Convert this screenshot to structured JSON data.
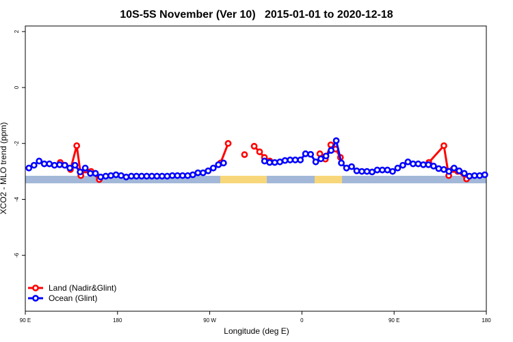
{
  "chart_data": {
    "type": "line",
    "title": "10S-5S November (Ver 10)   2015-01-01 to 2020-12-18",
    "x_label": "Longitude (deg E)",
    "y_label": "XCO2 - MLO trend (ppm)",
    "xlim": [
      90,
      540
    ],
    "ylim": [
      -8,
      2.2
    ],
    "xticks": [
      {
        "value": 90,
        "label": "90 E"
      },
      180,
      {
        "value": 270,
        "label": "90 W"
      },
      {
        "value": 360,
        "label": "0"
      },
      {
        "value": 450,
        "label": "90 E"
      },
      {
        "value": 540,
        "label": "180"
      }
    ],
    "yticks": [
      -6,
      -4,
      -2,
      0,
      2
    ],
    "legend": "bottom-left",
    "series": [
      {
        "name": "Land (Nadir&Glint)",
        "color": "#ff0000",
        "x": [
          124.1,
          128.8,
          134.1,
          140.2,
          144.2,
          148.8,
          154.2,
          162.2,
          null,
          280.6,
          288,
          null,
          304,
          null,
          313.4,
          318.7,
          323.4,
          328.7,
          null,
          377.5,
          382.9,
          388.2,
          392.9,
          397.6,
          null,
          483.9,
          498.6,
          503.3,
          507.3,
          512,
          520.7
        ],
        "values": [
          -2.68,
          -2.78,
          -2.93,
          -2.08,
          -3.15,
          -2.95,
          -3.0,
          -3.29,
          null,
          -2.7,
          -2.0,
          null,
          -2.4,
          null,
          -2.1,
          -2.3,
          -2.5,
          -2.63,
          null,
          -2.37,
          -2.56,
          -2.05,
          -2.2,
          -2.5,
          null,
          -2.68,
          -2.08,
          -3.15,
          -2.93,
          -3.0,
          -3.27
        ]
      },
      {
        "name": "Ocean (Glint)",
        "color": "#0000ff",
        "x": [
          93.5,
          98.5,
          103.5,
          108.5,
          113.5,
          118.5,
          123.5,
          128.5,
          133.5,
          138.5,
          143.5,
          148.5,
          153.5,
          158.5,
          163.5,
          168.5,
          173.5,
          178.5,
          183.5,
          188.5,
          193.5,
          198.5,
          203.5,
          208.5,
          213.5,
          218.5,
          223.5,
          228.5,
          233.5,
          238.5,
          243.5,
          248.5,
          253.5,
          258.5,
          263.5,
          268.5,
          273.5,
          278.5,
          283.5,
          288.5,
          293.5,
          298.5,
          303.5,
          308.5,
          313.5,
          318.5,
          323.5,
          328.5,
          333.5,
          338.5,
          343.5,
          348.5,
          353.5,
          358.5,
          363.5,
          368.5,
          373.5,
          378.5,
          383.5,
          388.5,
          393.5,
          398.5,
          403.5,
          408.5,
          413.5,
          418.5,
          423.5,
          428.5,
          433.5,
          438.5,
          443.5,
          448.5,
          453.5,
          458.5,
          463.5,
          468.5,
          473.5,
          478.5,
          483.5,
          488.5,
          493.5,
          498.5,
          503.5,
          508.5,
          513.5,
          518.5,
          523.5,
          528.5,
          533.5,
          538.5
        ],
        "values": [
          -2.88,
          -2.78,
          -2.63,
          -2.73,
          -2.73,
          -2.78,
          -2.76,
          -2.78,
          -2.88,
          -2.78,
          -3.02,
          -2.88,
          -3.07,
          -3.07,
          -3.2,
          -3.17,
          -3.15,
          -3.12,
          -3.15,
          -3.2,
          -3.17,
          -3.17,
          -3.17,
          -3.17,
          -3.17,
          -3.17,
          -3.17,
          -3.17,
          -3.15,
          -3.15,
          -3.15,
          -3.15,
          -3.12,
          -3.05,
          -3.05,
          -2.98,
          -2.88,
          -2.76,
          -2.7,
          null,
          null,
          null,
          null,
          null,
          null,
          null,
          -2.63,
          -2.68,
          -2.68,
          -2.66,
          -2.61,
          -2.59,
          -2.59,
          -2.59,
          -2.37,
          -2.39,
          -2.66,
          -2.55,
          -2.45,
          -2.25,
          -1.9,
          -2.7,
          -2.88,
          -2.83,
          -2.98,
          -3.0,
          -3.0,
          -3.02,
          -2.95,
          -2.95,
          -2.95,
          -3.0,
          -2.88,
          -2.78,
          -2.66,
          -2.73,
          -2.73,
          -2.76,
          -2.76,
          -2.81,
          -2.9,
          -2.93,
          -3.0,
          -2.88,
          -2.98,
          -3.07,
          -3.17,
          -3.15,
          -3.15,
          -3.12
        ]
      }
    ]
  }
}
